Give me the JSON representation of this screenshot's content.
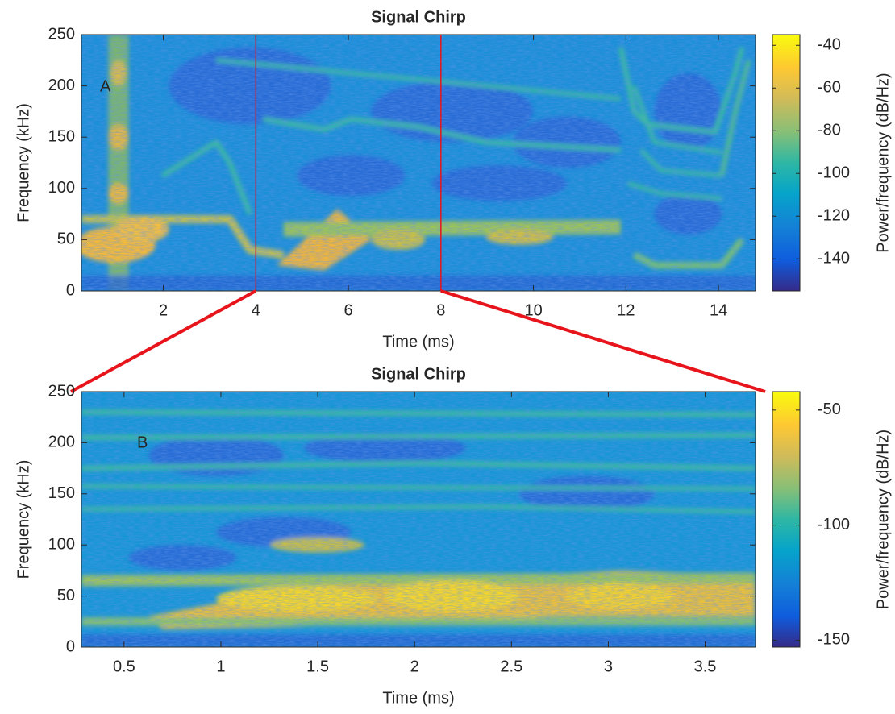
{
  "chart_data": [
    {
      "type": "spectrogram",
      "title": "Signal Chirp",
      "xlabel": "Time (ms)",
      "ylabel": "Frequency (kHz)",
      "annotation": "A",
      "xlim": [
        0.23,
        14.8
      ],
      "ylim": [
        0,
        250
      ],
      "xticks": [
        2,
        4,
        6,
        8,
        10,
        12,
        14
      ],
      "yticks": [
        0,
        50,
        100,
        150,
        200,
        250
      ],
      "colorbar": {
        "label": "Power/frequency (dB/Hz)",
        "lim": [
          -155,
          -35
        ],
        "ticks": [
          -140,
          -120,
          -100,
          -80,
          -60,
          -40
        ]
      },
      "zoom_range": [
        4,
        8
      ],
      "zoom_color": "#e8141b"
    },
    {
      "type": "spectrogram",
      "title": "Signal Chirp",
      "xlabel": "Time (ms)",
      "ylabel": "Frequency (kHz)",
      "annotation": "B",
      "xlim": [
        0.28,
        3.76
      ],
      "ylim": [
        0,
        250
      ],
      "xticks": [
        0.5,
        1,
        1.5,
        2,
        2.5,
        3,
        3.5
      ],
      "yticks": [
        0,
        50,
        100,
        150,
        200,
        250
      ],
      "colorbar": {
        "label": "Power/frequency (dB/Hz)",
        "lim": [
          -153,
          -42
        ],
        "ticks": [
          -150,
          -100,
          -50
        ]
      }
    }
  ]
}
